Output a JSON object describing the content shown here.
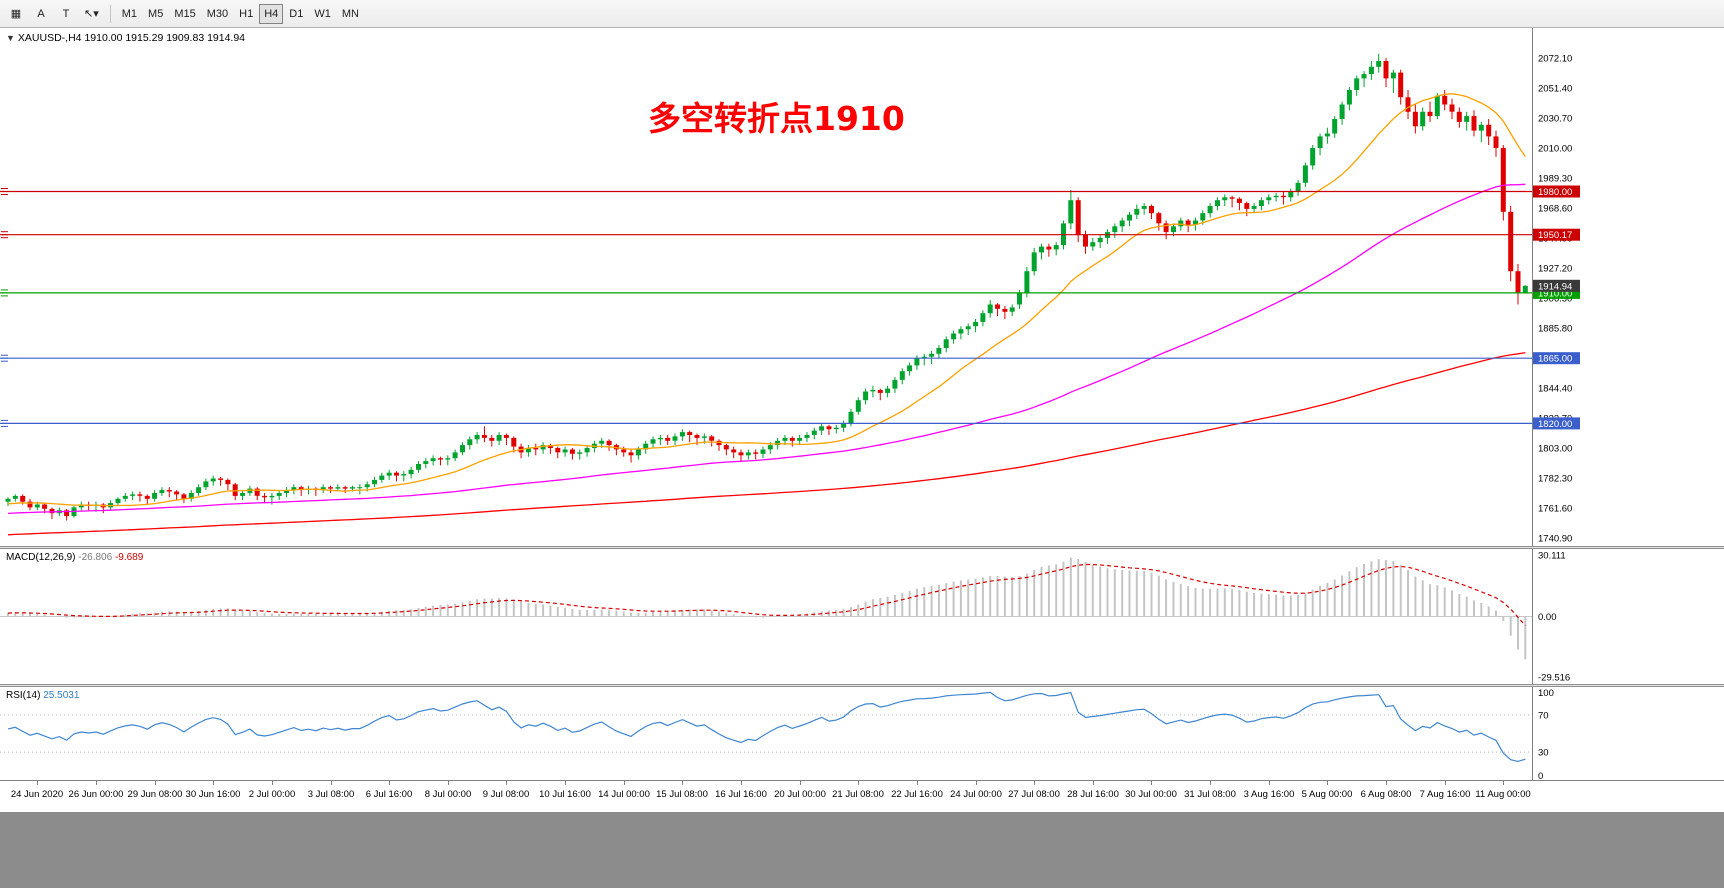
{
  "toolbar": {
    "tools": [
      {
        "id": "charts-grid",
        "glyph": "▦"
      },
      {
        "id": "text-a",
        "glyph": "A"
      },
      {
        "id": "text-label",
        "glyph": "T"
      },
      {
        "id": "arrow-draw",
        "glyph": "↖",
        "caret": "▾"
      }
    ],
    "timeframes": [
      "M1",
      "M5",
      "M15",
      "M30",
      "H1",
      "H4",
      "D1",
      "W1",
      "MN"
    ],
    "active_timeframe": "H4"
  },
  "window": {
    "expander_glyph": "▼",
    "symbol_title": "XAUUSD-,H4",
    "ohlc_text": "1910.00 1915.29 1909.83 1914.94"
  },
  "annotation": {
    "text": "多空转折点1910",
    "color": "#FF0000"
  },
  "indicators": {
    "macd": {
      "title": "MACD(12,26,9)",
      "main_value": "-26.806",
      "signal_value": "-9.689",
      "axis_labels": [
        "30.111",
        "0.00",
        "-29.516"
      ],
      "fast": 12,
      "slow": 26,
      "signal_period": 9
    },
    "rsi": {
      "title": "RSI(14)",
      "value": "25.5031",
      "axis_labels": [
        "100",
        "70",
        "30",
        "0"
      ],
      "period": 14,
      "levels": [
        70,
        30
      ]
    }
  },
  "price_axis": {
    "ticks": [
      "2072.10",
      "2051.40",
      "2030.70",
      "2010.00",
      "1989.30",
      "1968.60",
      "1947.90",
      "1927.20",
      "1906.50",
      "1885.80",
      "1865.10",
      "1844.40",
      "1823.70",
      "1803.00",
      "1782.30",
      "1761.60",
      "1740.90"
    ]
  },
  "chart_data": {
    "type": "candlestick",
    "symbol": "XAUUSD-",
    "timeframe": "H4",
    "title": "多空转折点1910",
    "ylim": [
      1735.4,
      2092.8
    ],
    "x_first_label_bar": 4,
    "x_label_step": 8,
    "x_labels": [
      "24 Jun 2020",
      "26 Jun 00:00",
      "29 Jun 08:00",
      "30 Jun 16:00",
      "2 Jul 00:00",
      "3 Jul 08:00",
      "6 Jul 16:00",
      "8 Jul 00:00",
      "9 Jul 08:00",
      "10 Jul 16:00",
      "14 Jul 00:00",
      "15 Jul 08:00",
      "16 Jul 16:00",
      "20 Jul 00:00",
      "21 Jul 08:00",
      "22 Jul 16:00",
      "24 Jul 00:00",
      "27 Jul 08:00",
      "28 Jul 16:00",
      "30 Jul 00:00",
      "31 Jul 08:00",
      "3 Aug 16:00",
      "5 Aug 00:00",
      "6 Aug 08:00",
      "7 Aug 16:00",
      "11 Aug 00:00"
    ],
    "horizontal_lines": [
      {
        "price": 1980.0,
        "label": "1980.00",
        "color": "#CC0000"
      },
      {
        "price": 1950.17,
        "label": "1950.17",
        "color": "#CC0000"
      },
      {
        "price": 1910.0,
        "label": "1910.00",
        "color": "#00A000"
      },
      {
        "price": 1865.0,
        "label": "1865.00",
        "color": "#3A5FCD"
      },
      {
        "price": 1820.0,
        "label": "1820.00",
        "color": "#3A5FCD"
      }
    ],
    "current_price": {
      "value": 1914.94,
      "label": "1914.94",
      "color": "#3A3A3A"
    },
    "moving_averages": [
      {
        "name": "fast",
        "period": 16,
        "color": "#FFA000"
      },
      {
        "name": "medium",
        "period": 72,
        "color": "#FF00FF"
      },
      {
        "name": "slow",
        "period": 200,
        "color": "#FF0000"
      }
    ],
    "ohlc": [
      [
        1766,
        1769,
        1763,
        1768
      ],
      [
        1768,
        1771,
        1766,
        1770
      ],
      [
        1770,
        1771,
        1764,
        1766
      ],
      [
        1766,
        1768,
        1760,
        1762
      ],
      [
        1762,
        1766,
        1760,
        1764
      ],
      [
        1764,
        1765,
        1758,
        1761
      ],
      [
        1761,
        1762,
        1754,
        1758
      ],
      [
        1758,
        1762,
        1756,
        1760
      ],
      [
        1760,
        1761,
        1753,
        1756
      ],
      [
        1756,
        1763,
        1755,
        1762
      ],
      [
        1762,
        1766,
        1760,
        1764
      ],
      [
        1764,
        1766,
        1760,
        1763
      ],
      [
        1763,
        1766,
        1759,
        1764
      ],
      [
        1764,
        1765,
        1758,
        1762
      ],
      [
        1762,
        1767,
        1760,
        1765
      ],
      [
        1765,
        1769,
        1763,
        1768
      ],
      [
        1768,
        1772,
        1766,
        1770
      ],
      [
        1770,
        1773,
        1767,
        1771
      ],
      [
        1771,
        1773,
        1766,
        1770
      ],
      [
        1770,
        1771,
        1764,
        1768
      ],
      [
        1768,
        1774,
        1766,
        1772
      ],
      [
        1772,
        1776,
        1770,
        1774
      ],
      [
        1774,
        1776,
        1769,
        1773
      ],
      [
        1773,
        1774,
        1767,
        1771
      ],
      [
        1771,
        1772,
        1765,
        1768
      ],
      [
        1768,
        1774,
        1766,
        1772
      ],
      [
        1772,
        1778,
        1770,
        1776
      ],
      [
        1776,
        1782,
        1774,
        1780
      ],
      [
        1780,
        1784,
        1777,
        1782
      ],
      [
        1782,
        1783,
        1777,
        1781
      ],
      [
        1781,
        1782,
        1774,
        1778
      ],
      [
        1778,
        1779,
        1767,
        1770
      ],
      [
        1770,
        1774,
        1767,
        1772
      ],
      [
        1772,
        1777,
        1770,
        1775
      ],
      [
        1775,
        1776,
        1767,
        1770
      ],
      [
        1770,
        1772,
        1765,
        1769
      ],
      [
        1769,
        1772,
        1764,
        1770
      ],
      [
        1770,
        1774,
        1767,
        1772
      ],
      [
        1772,
        1776,
        1769,
        1774
      ],
      [
        1774,
        1778,
        1771,
        1776
      ],
      [
        1776,
        1777,
        1770,
        1774
      ],
      [
        1774,
        1777,
        1771,
        1775
      ],
      [
        1775,
        1776,
        1770,
        1774
      ],
      [
        1774,
        1778,
        1772,
        1776
      ],
      [
        1776,
        1777,
        1772,
        1775
      ],
      [
        1775,
        1778,
        1773,
        1776
      ],
      [
        1776,
        1777,
        1772,
        1775
      ],
      [
        1775,
        1777,
        1773,
        1776
      ],
      [
        1776,
        1778,
        1771,
        1776
      ],
      [
        1776,
        1780,
        1773,
        1778
      ],
      [
        1778,
        1783,
        1776,
        1781
      ],
      [
        1781,
        1786,
        1779,
        1784
      ],
      [
        1784,
        1788,
        1781,
        1786
      ],
      [
        1786,
        1787,
        1780,
        1784
      ],
      [
        1784,
        1787,
        1780,
        1785
      ],
      [
        1785,
        1790,
        1782,
        1788
      ],
      [
        1788,
        1794,
        1786,
        1792
      ],
      [
        1792,
        1796,
        1789,
        1794
      ],
      [
        1794,
        1798,
        1791,
        1796
      ],
      [
        1796,
        1797,
        1791,
        1795
      ],
      [
        1795,
        1798,
        1791,
        1796
      ],
      [
        1796,
        1802,
        1794,
        1800
      ],
      [
        1800,
        1807,
        1798,
        1805
      ],
      [
        1805,
        1811,
        1802,
        1809
      ],
      [
        1809,
        1814,
        1806,
        1812
      ],
      [
        1812,
        1818,
        1807,
        1810
      ],
      [
        1810,
        1812,
        1804,
        1808
      ],
      [
        1808,
        1814,
        1805,
        1812
      ],
      [
        1812,
        1813,
        1805,
        1810
      ],
      [
        1810,
        1811,
        1800,
        1804
      ],
      [
        1804,
        1806,
        1796,
        1800
      ],
      [
        1800,
        1805,
        1797,
        1803
      ],
      [
        1803,
        1806,
        1798,
        1802
      ],
      [
        1802,
        1807,
        1799,
        1805
      ],
      [
        1805,
        1806,
        1799,
        1803
      ],
      [
        1803,
        1804,
        1796,
        1800
      ],
      [
        1800,
        1804,
        1797,
        1802
      ],
      [
        1802,
        1803,
        1795,
        1799
      ],
      [
        1799,
        1802,
        1795,
        1800
      ],
      [
        1800,
        1805,
        1797,
        1803
      ],
      [
        1803,
        1808,
        1800,
        1806
      ],
      [
        1806,
        1810,
        1803,
        1808
      ],
      [
        1808,
        1809,
        1801,
        1805
      ],
      [
        1805,
        1806,
        1798,
        1802
      ],
      [
        1802,
        1804,
        1797,
        1800
      ],
      [
        1800,
        1802,
        1793,
        1798
      ],
      [
        1798,
        1804,
        1795,
        1802
      ],
      [
        1802,
        1808,
        1799,
        1806
      ],
      [
        1806,
        1811,
        1803,
        1809
      ],
      [
        1809,
        1812,
        1805,
        1810
      ],
      [
        1810,
        1812,
        1805,
        1808
      ],
      [
        1808,
        1813,
        1805,
        1811
      ],
      [
        1811,
        1816,
        1808,
        1814
      ],
      [
        1814,
        1815,
        1807,
        1812
      ],
      [
        1812,
        1813,
        1805,
        1810
      ],
      [
        1810,
        1813,
        1806,
        1811
      ],
      [
        1811,
        1812,
        1804,
        1808
      ],
      [
        1808,
        1809,
        1801,
        1805
      ],
      [
        1805,
        1806,
        1798,
        1802
      ],
      [
        1802,
        1804,
        1796,
        1800
      ],
      [
        1800,
        1802,
        1794,
        1798
      ],
      [
        1798,
        1802,
        1795,
        1800
      ],
      [
        1800,
        1802,
        1795,
        1799
      ],
      [
        1799,
        1804,
        1796,
        1802
      ],
      [
        1802,
        1807,
        1799,
        1805
      ],
      [
        1805,
        1810,
        1802,
        1808
      ],
      [
        1808,
        1812,
        1805,
        1810
      ],
      [
        1810,
        1811,
        1804,
        1808
      ],
      [
        1808,
        1812,
        1805,
        1810
      ],
      [
        1810,
        1814,
        1807,
        1812
      ],
      [
        1812,
        1817,
        1809,
        1815
      ],
      [
        1815,
        1820,
        1812,
        1818
      ],
      [
        1818,
        1819,
        1812,
        1816
      ],
      [
        1816,
        1819,
        1813,
        1817
      ],
      [
        1817,
        1822,
        1814,
        1820
      ],
      [
        1820,
        1830,
        1818,
        1828
      ],
      [
        1828,
        1838,
        1826,
        1836
      ],
      [
        1836,
        1844,
        1833,
        1842
      ],
      [
        1842,
        1846,
        1838,
        1843
      ],
      [
        1843,
        1844,
        1836,
        1841
      ],
      [
        1841,
        1846,
        1838,
        1844
      ],
      [
        1844,
        1852,
        1841,
        1850
      ],
      [
        1850,
        1858,
        1847,
        1856
      ],
      [
        1856,
        1862,
        1853,
        1860
      ],
      [
        1860,
        1867,
        1857,
        1865
      ],
      [
        1865,
        1868,
        1860,
        1866
      ],
      [
        1866,
        1870,
        1861,
        1868
      ],
      [
        1868,
        1874,
        1865,
        1872
      ],
      [
        1872,
        1880,
        1869,
        1878
      ],
      [
        1878,
        1884,
        1875,
        1882
      ],
      [
        1882,
        1887,
        1878,
        1885
      ],
      [
        1885,
        1889,
        1881,
        1887
      ],
      [
        1887,
        1892,
        1883,
        1890
      ],
      [
        1890,
        1898,
        1887,
        1896
      ],
      [
        1896,
        1905,
        1893,
        1902
      ],
      [
        1902,
        1903,
        1894,
        1899
      ],
      [
        1899,
        1901,
        1892,
        1897
      ],
      [
        1897,
        1902,
        1894,
        1900
      ],
      [
        1902,
        1912,
        1899,
        1910
      ],
      [
        1910,
        1928,
        1907,
        1925
      ],
      [
        1925,
        1941,
        1922,
        1938
      ],
      [
        1938,
        1944,
        1933,
        1942
      ],
      [
        1942,
        1944,
        1935,
        1940
      ],
      [
        1940,
        1945,
        1936,
        1943
      ],
      [
        1943,
        1960,
        1940,
        1958
      ],
      [
        1958,
        1981,
        1954,
        1974
      ],
      [
        1974,
        1976,
        1945,
        1950
      ],
      [
        1950,
        1953,
        1937,
        1942
      ],
      [
        1942,
        1948,
        1939,
        1945
      ],
      [
        1945,
        1950,
        1941,
        1948
      ],
      [
        1948,
        1954,
        1944,
        1952
      ],
      [
        1952,
        1958,
        1948,
        1956
      ],
      [
        1956,
        1962,
        1952,
        1960
      ],
      [
        1960,
        1966,
        1956,
        1964
      ],
      [
        1964,
        1971,
        1961,
        1968
      ],
      [
        1968,
        1972,
        1964,
        1970
      ],
      [
        1970,
        1971,
        1961,
        1965
      ],
      [
        1965,
        1966,
        1953,
        1958
      ],
      [
        1958,
        1960,
        1947,
        1952
      ],
      [
        1952,
        1958,
        1949,
        1956
      ],
      [
        1956,
        1962,
        1953,
        1960
      ],
      [
        1960,
        1961,
        1952,
        1957
      ],
      [
        1957,
        1962,
        1953,
        1960
      ],
      [
        1960,
        1967,
        1957,
        1965
      ],
      [
        1965,
        1972,
        1962,
        1970
      ],
      [
        1970,
        1976,
        1967,
        1974
      ],
      [
        1974,
        1978,
        1970,
        1976
      ],
      [
        1976,
        1977,
        1969,
        1975
      ],
      [
        1975,
        1976,
        1967,
        1972
      ],
      [
        1972,
        1973,
        1963,
        1968
      ],
      [
        1968,
        1972,
        1965,
        1970
      ],
      [
        1970,
        1976,
        1967,
        1974
      ],
      [
        1974,
        1978,
        1971,
        1976
      ],
      [
        1976,
        1979,
        1973,
        1977
      ],
      [
        1977,
        1980,
        1971,
        1976
      ],
      [
        1976,
        1982,
        1973,
        1980
      ],
      [
        1980,
        1988,
        1977,
        1986
      ],
      [
        1986,
        2000,
        1983,
        1998
      ],
      [
        1998,
        2012,
        1995,
        2010
      ],
      [
        2010,
        2020,
        2005,
        2018
      ],
      [
        2018,
        2024,
        2013,
        2020
      ],
      [
        2020,
        2032,
        2017,
        2030
      ],
      [
        2030,
        2042,
        2026,
        2040
      ],
      [
        2040,
        2052,
        2036,
        2050
      ],
      [
        2050,
        2060,
        2046,
        2058
      ],
      [
        2058,
        2063,
        2052,
        2061
      ],
      [
        2061,
        2070,
        2057,
        2066
      ],
      [
        2066,
        2075,
        2062,
        2070
      ],
      [
        2070,
        2072,
        2052,
        2058
      ],
      [
        2058,
        2064,
        2048,
        2062
      ],
      [
        2062,
        2064,
        2040,
        2045
      ],
      [
        2045,
        2050,
        2030,
        2035
      ],
      [
        2035,
        2040,
        2020,
        2025
      ],
      [
        2025,
        2038,
        2022,
        2035
      ],
      [
        2035,
        2042,
        2028,
        2032
      ],
      [
        2032,
        2048,
        2030,
        2046
      ],
      [
        2046,
        2050,
        2036,
        2040
      ],
      [
        2040,
        2044,
        2030,
        2035
      ],
      [
        2035,
        2038,
        2024,
        2028
      ],
      [
        2028,
        2035,
        2022,
        2032
      ],
      [
        2032,
        2036,
        2018,
        2022
      ],
      [
        2022,
        2028,
        2014,
        2026
      ],
      [
        2026,
        2030,
        2012,
        2018
      ],
      [
        2018,
        2022,
        2004,
        2010
      ],
      [
        2010,
        2012,
        1960,
        1966
      ],
      [
        1966,
        1970,
        1918,
        1925
      ],
      [
        1925,
        1930,
        1902,
        1910
      ],
      [
        1910,
        1915.29,
        1909.83,
        1914.94
      ]
    ]
  },
  "colors": {
    "up": "#00A32E",
    "down": "#E00000",
    "macd_hist": "#C4C4C4",
    "macd_signal": "#D90000",
    "rsi_line": "#3E86D2",
    "axis_text": "#000000"
  }
}
